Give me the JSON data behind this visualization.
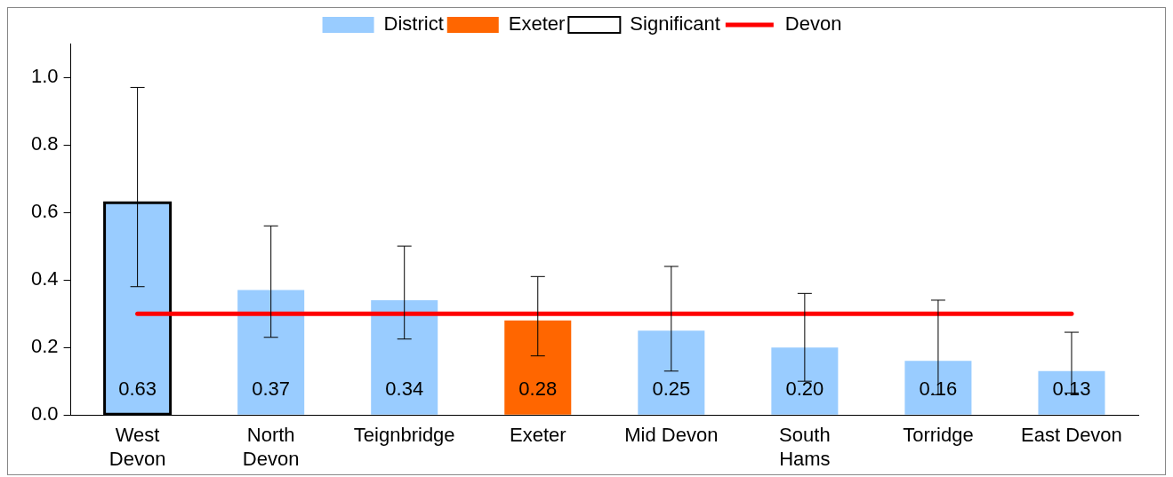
{
  "chart_data": {
    "type": "bar",
    "categories": [
      "West\nDevon",
      "North\nDevon",
      "Teignbridge",
      "Exeter",
      "Mid Devon",
      "South\nHams",
      "Torridge",
      "East Devon"
    ],
    "series": [
      {
        "name": "District",
        "color": "#99ccff",
        "values": [
          0.63,
          0.37,
          0.34,
          null,
          0.25,
          0.2,
          0.16,
          0.13
        ],
        "value_labels": [
          "0.63",
          "0.37",
          "0.34",
          null,
          "0.25",
          "0.20",
          "0.16",
          "0.13"
        ],
        "errors": [
          [
            0.38,
            0.97
          ],
          [
            0.23,
            0.56
          ],
          [
            0.225,
            0.5
          ],
          null,
          [
            0.13,
            0.44
          ],
          [
            0.1,
            0.36
          ],
          [
            0.06,
            0.34
          ],
          [
            0.065,
            0.245
          ]
        ]
      },
      {
        "name": "Exeter",
        "color": "#ff6600",
        "values": [
          null,
          null,
          null,
          0.28,
          null,
          null,
          null,
          null
        ],
        "value_labels": [
          null,
          null,
          null,
          "0.28",
          null,
          null,
          null,
          null
        ],
        "errors": [
          null,
          null,
          null,
          [
            0.175,
            0.41
          ],
          null,
          null,
          null,
          null
        ]
      },
      {
        "name": "Significant",
        "color": "#000000",
        "values": [
          0.63,
          null,
          null,
          null,
          null,
          null,
          null,
          null
        ]
      }
    ],
    "ref_lines": [
      {
        "axis": "y",
        "value": 0.3,
        "label": "Devon",
        "color": "#ff0000"
      }
    ],
    "ylim": [
      0,
      1.1
    ],
    "yticks": [
      {
        "value": 0,
        "label": "0.0"
      },
      {
        "value": 0.2,
        "label": "0.2"
      },
      {
        "value": 0.4,
        "label": "0.4"
      },
      {
        "value": 0.6,
        "label": "0.6"
      },
      {
        "value": 0.8,
        "label": "0.8"
      },
      {
        "value": 1,
        "label": "1.0"
      }
    ],
    "grid": false,
    "legend": "top"
  }
}
